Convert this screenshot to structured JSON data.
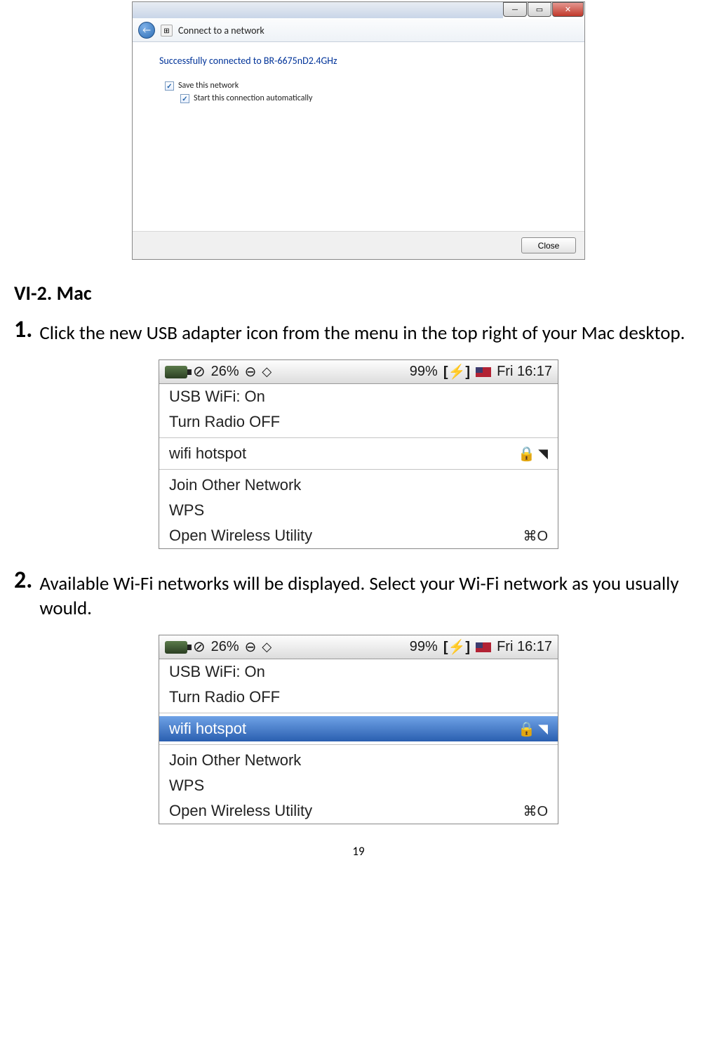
{
  "win": {
    "title": "Connect to a network",
    "success": "Successfully connected to BR-6675nD2.4GHz",
    "save_label": "Save this network",
    "auto_label": "Start this connection automatically",
    "close_label": "Close"
  },
  "doc": {
    "section": "VI-2.    Mac",
    "step1_num": "1.",
    "step1_text": "Click the new USB adapter icon from the menu in the top right of your Mac desktop.",
    "step2_num": "2.",
    "step2_text": "Available Wi-Fi networks will be displayed. Select your Wi-Fi network as you usually would.",
    "page_number": "19"
  },
  "mac": {
    "percent1": "26%",
    "percent2": "99%",
    "time": "Fri 16:17",
    "status": "USB WiFi: On",
    "turn_off": "Turn Radio OFF",
    "hotspot": "wifi hotspot",
    "join": "Join Other Network",
    "wps": "WPS",
    "open_util": "Open Wireless Utility",
    "shortcut": "⌘O",
    "battery_glyph": "⚡"
  }
}
